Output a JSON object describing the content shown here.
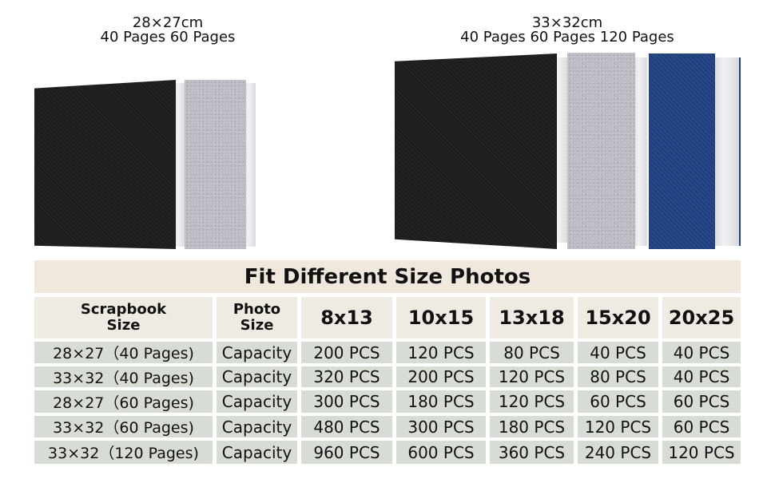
{
  "products": [
    {
      "size": "28×27cm",
      "pages": "40 Pages 60 Pages",
      "colors": [
        "black",
        "gray"
      ]
    },
    {
      "size": "33×32cm",
      "pages": "40 Pages 60 Pages 120 Pages",
      "colors": [
        "black",
        "gray",
        "blue"
      ]
    }
  ],
  "table": {
    "title": "Fit Different Size Photos",
    "header": {
      "scrapbook_line1": "Scrapbook",
      "scrapbook_line2": "Size",
      "photo_line1": "Photo",
      "photo_line2": "Size",
      "sizes": [
        "8x13",
        "10x15",
        "13x18",
        "15x20",
        "20x25"
      ]
    },
    "rows": [
      {
        "scrapbook": "28×27（40 Pages)",
        "label": "Capacity",
        "values": [
          "200 PCS",
          "120 PCS",
          "80 PCS",
          "40 PCS",
          "40 PCS"
        ]
      },
      {
        "scrapbook": "33×32（40 Pages)",
        "label": "Capacity",
        "values": [
          "320 PCS",
          "200 PCS",
          "120 PCS",
          "80 PCS",
          "40 PCS"
        ]
      },
      {
        "scrapbook": "28×27（60 Pages)",
        "label": "Capacity",
        "values": [
          "300 PCS",
          "180 PCS",
          "120 PCS",
          "60 PCS",
          "60 PCS"
        ]
      },
      {
        "scrapbook": "33×32（60 Pages)",
        "label": "Capacity",
        "values": [
          "480 PCS",
          "300 PCS",
          "180 PCS",
          "120 PCS",
          "60 PCS"
        ]
      },
      {
        "scrapbook": "33×32（120 Pages)",
        "label": "Capacity",
        "values": [
          "960 PCS",
          "600 PCS",
          "360 PCS",
          "240 PCS",
          "120 PCS"
        ]
      }
    ]
  },
  "colors": {
    "title_bg": "#f0e8dd",
    "header_bg": "#efebe2",
    "cell_bg": "#d7ddd5",
    "black_cover": "#1e1e1e",
    "gray_cover": "#bcbcc4",
    "blue_cover": "#23437f"
  }
}
